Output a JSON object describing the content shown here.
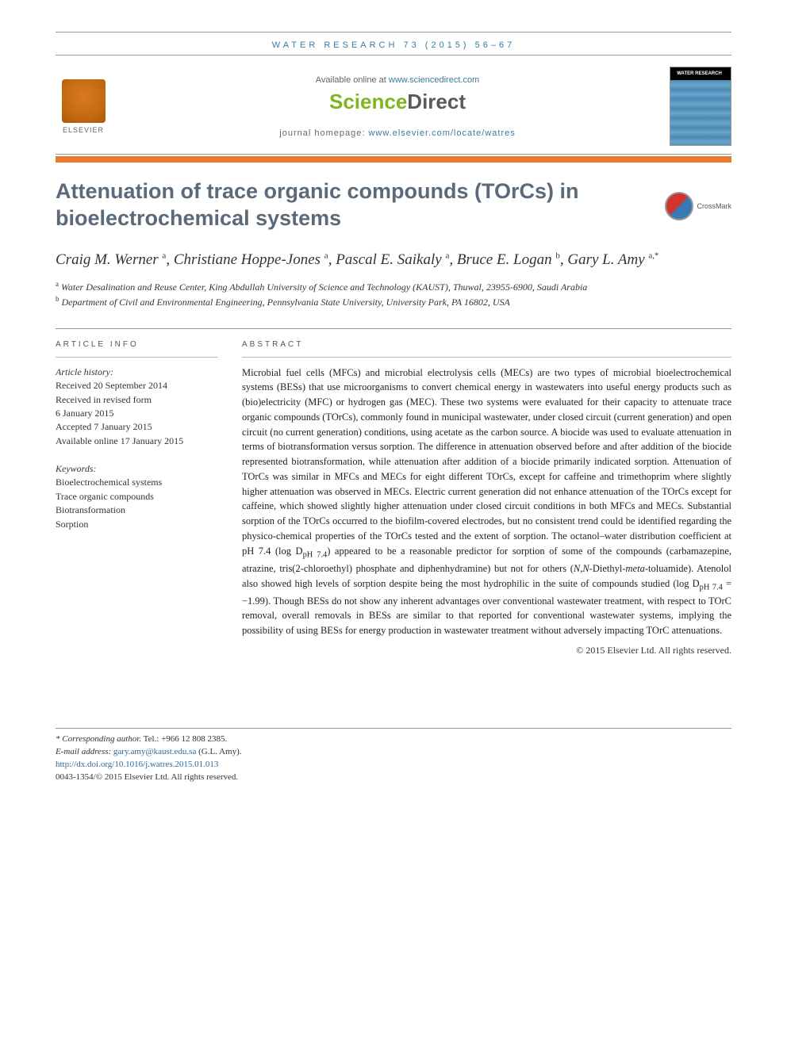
{
  "journal_ref": "WATER RESEARCH 73 (2015) 56–67",
  "header": {
    "available_text": "Available online at ",
    "available_link": "www.sciencedirect.com",
    "sciencedirect_science": "Science",
    "sciencedirect_direct": "Direct",
    "homepage_label": "journal homepage: ",
    "homepage_link": "www.elsevier.com/locate/watres",
    "elsevier_label": "ELSEVIER",
    "cover_title": "WATER RESEARCH"
  },
  "crossmark_label": "CrossMark",
  "title": "Attenuation of trace organic compounds (TOrCs) in bioelectrochemical systems",
  "authors_html": "Craig M. Werner <sup>a</sup>, Christiane Hoppe-Jones <sup>a</sup>, Pascal E. Saikaly <sup>a</sup>, Bruce E. Logan <sup>b</sup>, Gary L. Amy <sup>a,*</sup>",
  "affiliations": {
    "a": "Water Desalination and Reuse Center, King Abdullah University of Science and Technology (KAUST), Thuwal, 23955-6900, Saudi Arabia",
    "b": "Department of Civil and Environmental Engineering, Pennsylvania State University, University Park, PA 16802, USA"
  },
  "article_info": {
    "section_label": "ARTICLE INFO",
    "history_label": "Article history:",
    "received": "Received 20 September 2014",
    "revised_label": "Received in revised form",
    "revised_date": "6 January 2015",
    "accepted": "Accepted 7 January 2015",
    "online": "Available online 17 January 2015",
    "keywords_label": "Keywords:",
    "keywords": [
      "Bioelectrochemical systems",
      "Trace organic compounds",
      "Biotransformation",
      "Sorption"
    ]
  },
  "abstract": {
    "section_label": "ABSTRACT",
    "text": "Microbial fuel cells (MFCs) and microbial electrolysis cells (MECs) are two types of microbial bioelectrochemical systems (BESs) that use microorganisms to convert chemical energy in wastewaters into useful energy products such as (bio)electricity (MFC) or hydrogen gas (MEC). These two systems were evaluated for their capacity to attenuate trace organic compounds (TOrCs), commonly found in municipal wastewater, under closed circuit (current generation) and open circuit (no current generation) conditions, using acetate as the carbon source. A biocide was used to evaluate attenuation in terms of biotransformation versus sorption. The difference in attenuation observed before and after addition of the biocide represented biotransformation, while attenuation after addition of a biocide primarily indicated sorption. Attenuation of TOrCs was similar in MFCs and MECs for eight different TOrCs, except for caffeine and trimethoprim where slightly higher attenuation was observed in MECs. Electric current generation did not enhance attenuation of the TOrCs except for caffeine, which showed slightly higher attenuation under closed circuit conditions in both MFCs and MECs. Substantial sorption of the TOrCs occurred to the biofilm-covered electrodes, but no consistent trend could be identified regarding the physico-chemical properties of the TOrCs tested and the extent of sorption. The octanol–water distribution coefficient at pH 7.4 (log DpH 7.4) appeared to be a reasonable predictor for sorption of some of the compounds (carbamazepine, atrazine, tris(2-chloroethyl) phosphate and diphenhydramine) but not for others (N,N-Diethyl-meta-toluamide). Atenolol also showed high levels of sorption despite being the most hydrophilic in the suite of compounds studied (log DpH 7.4 = −1.99). Though BESs do not show any inherent advantages over conventional wastewater treatment, with respect to TOrC removal, overall removals in BESs are similar to that reported for conventional wastewater systems, implying the possibility of using BESs for energy production in wastewater treatment without adversely impacting TOrC attenuations.",
    "copyright": "© 2015 Elsevier Ltd. All rights reserved."
  },
  "footer": {
    "corresponding_label": "* Corresponding author.",
    "tel": "Tel.: +966 12 808 2385.",
    "email_label": "E-mail address: ",
    "email": "gary.amy@kaust.edu.sa",
    "email_name": " (G.L. Amy).",
    "doi": "http://dx.doi.org/10.1016/j.watres.2015.01.013",
    "issn_line": "0043-1354/© 2015 Elsevier Ltd. All rights reserved."
  },
  "colors": {
    "orange_bar": "#e8792e",
    "title_color": "#5a6a7a",
    "link_color": "#3b7a9e",
    "sd_green": "#7fb51f",
    "sd_gray": "#5a5a5a"
  }
}
